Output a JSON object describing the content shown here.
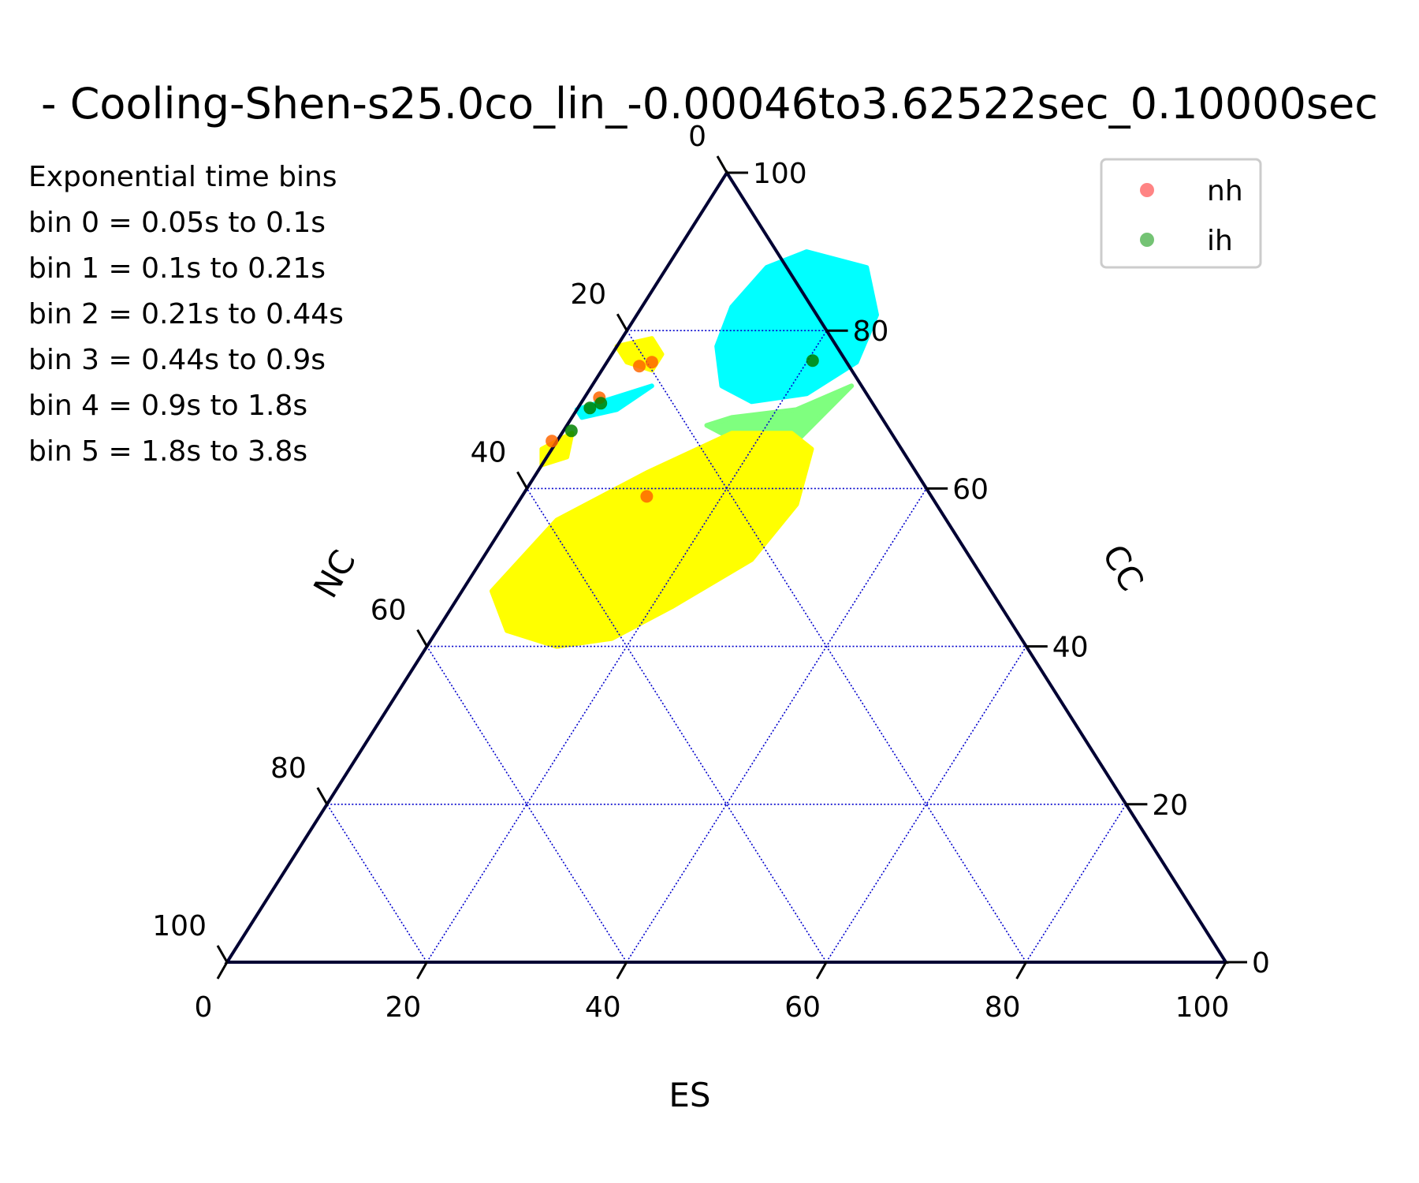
{
  "chart_data": {
    "type": "scatter",
    "subtype": "ternary",
    "title": "- Cooling-Shen-s25.0co_lin_-0.00046to3.62522sec_0.10000sec",
    "axes": {
      "bottom": {
        "label": "ES",
        "ticks": [
          "0",
          "20",
          "40",
          "60",
          "80",
          "100"
        ]
      },
      "left": {
        "label": "NC",
        "ticks": [
          "0",
          "20",
          "40",
          "60",
          "80",
          "100"
        ]
      },
      "right": {
        "label": "CC",
        "ticks": [
          "0",
          "20",
          "40",
          "60",
          "80",
          "100"
        ]
      },
      "range": [
        0,
        100
      ]
    },
    "grid": true,
    "grid_color": "#0000cc",
    "annotation_lines": [
      "Exponential time bins",
      "bin 0 = 0.05s to 0.1s",
      "bin 1 = 0.1s to 0.21s",
      "bin 2 = 0.21s to 0.44s",
      "bin 3 = 0.44s to 0.9s",
      "bin 4 = 0.9s to 1.8s",
      "bin 5 = 1.8s to 3.8s"
    ],
    "legend": {
      "placement": "top-right",
      "entries": [
        {
          "label": "nh",
          "color": "#ff6e6e"
        },
        {
          "label": "ih",
          "color": "#5cb85c"
        }
      ]
    },
    "regions": [
      {
        "color": "#00ffff",
        "hull": [
          [
            13,
            90
          ],
          [
            20,
            88
          ],
          [
            24,
            82
          ],
          [
            25,
            76
          ],
          [
            22,
            72
          ],
          [
            17,
            71
          ],
          [
            13,
            73
          ],
          [
            10,
            78
          ],
          [
            9,
            83
          ],
          [
            10,
            88
          ]
        ]
      },
      {
        "color": "#7fff7f",
        "hull": [
          [
            16,
            69
          ],
          [
            22,
            70
          ],
          [
            26,
            73
          ],
          [
            24,
            66
          ],
          [
            18,
            66
          ],
          [
            14,
            68
          ]
        ]
      },
      {
        "color": "#ffff00",
        "hull": [
          [
            26,
            65
          ],
          [
            28,
            58
          ],
          [
            27,
            51
          ],
          [
            22,
            45
          ],
          [
            18,
            41
          ],
          [
            13,
            40
          ],
          [
            7,
            42
          ],
          [
            3,
            47
          ],
          [
            5,
            56
          ],
          [
            11,
            62
          ],
          [
            17,
            67
          ],
          [
            23,
            67
          ]
        ]
      },
      {
        "color": "#ffff00",
        "hull": [
          [
            0,
            78
          ],
          [
            3,
            79
          ],
          [
            5,
            77
          ],
          [
            5,
            75
          ],
          [
            2,
            76
          ]
        ]
      },
      {
        "color": "#00ffff",
        "hull": [
          [
            0,
            70
          ],
          [
            4,
            72
          ],
          [
            6,
            73
          ],
          [
            4,
            70
          ],
          [
            1,
            69
          ]
        ]
      },
      {
        "color": "#ffff00",
        "hull": [
          [
            -1,
            65
          ],
          [
            1,
            67
          ],
          [
            2,
            64
          ],
          [
            0,
            63
          ]
        ]
      }
    ],
    "series": [
      {
        "name": "nh",
        "color": "#ff6600",
        "points": [
          [
            3.5,
            75.5
          ],
          [
            4.5,
            76
          ],
          [
            1.5,
            71.5
          ],
          [
            -0.5,
            66
          ],
          [
            12.5,
            59
          ]
        ]
      },
      {
        "name": "ih",
        "color": "#008000",
        "points": [
          [
            1.2,
            70.2
          ],
          [
            2,
            70.8
          ],
          [
            0.8,
            67.3
          ],
          [
            20.5,
            76.2
          ]
        ]
      }
    ]
  }
}
